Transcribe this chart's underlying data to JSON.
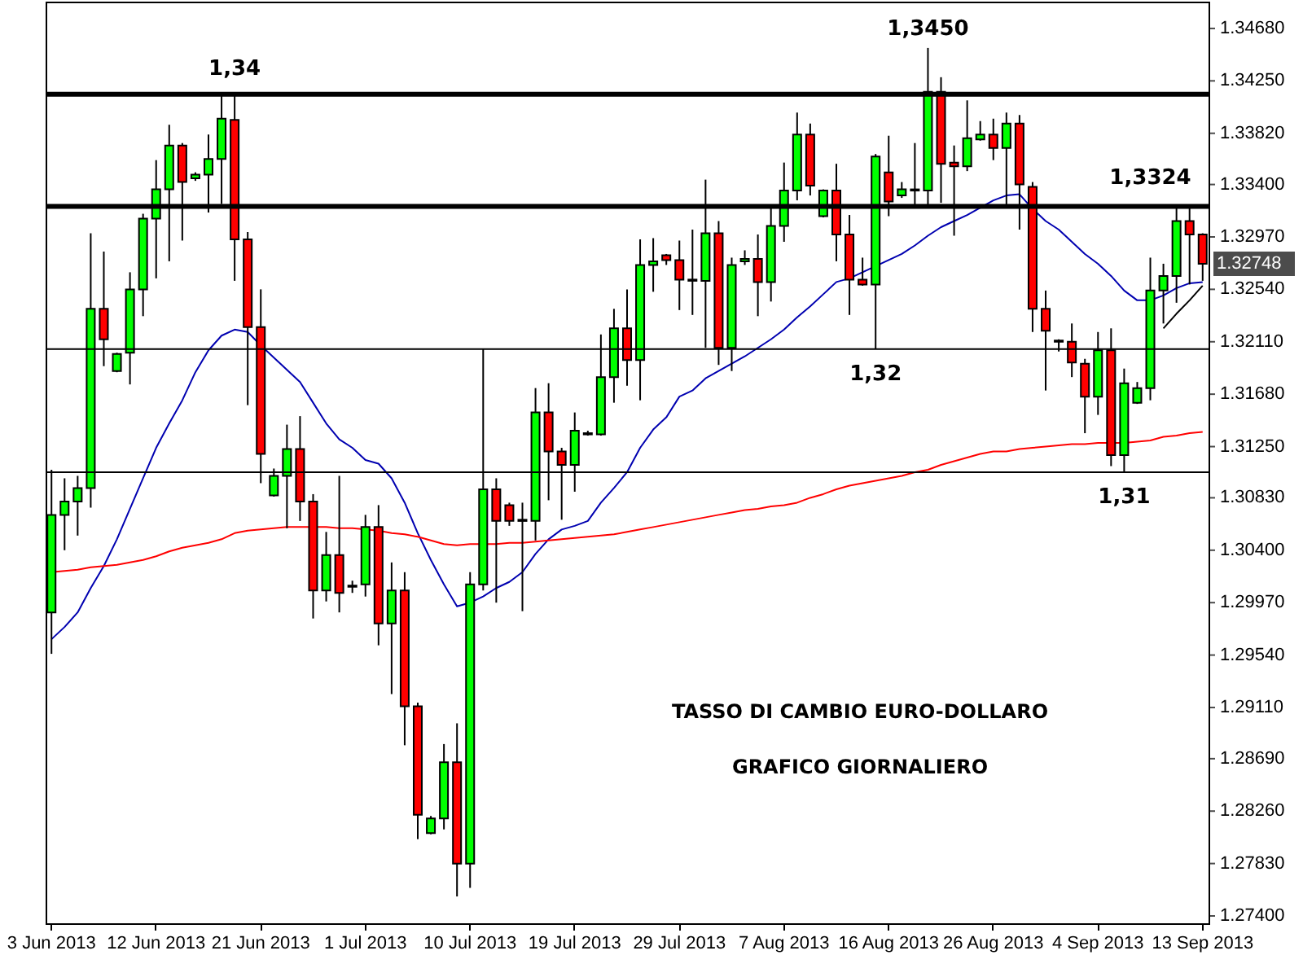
{
  "chart_data": {
    "type": "candlestick",
    "title": "TASSO DI CAMBIO EURO-DOLLARO",
    "subtitle": "GRAFICO GIORNALIERO",
    "categories": [
      "3 Jun 2013",
      null,
      null,
      null,
      null,
      null,
      null,
      null,
      "12 Jun 2013",
      null,
      null,
      null,
      null,
      null,
      null,
      null,
      "21 Jun 2013",
      null,
      null,
      null,
      null,
      null,
      null,
      null,
      "1 Jul 2013",
      null,
      null,
      null,
      null,
      null,
      null,
      null,
      "10 Jul 2013",
      null,
      null,
      null,
      null,
      null,
      null,
      null,
      "19 Jul 2013",
      null,
      null,
      null,
      null,
      null,
      null,
      null,
      "29 Jul 2013",
      null,
      null,
      null,
      null,
      null,
      null,
      null,
      "7 Aug 2013",
      null,
      null,
      null,
      null,
      null,
      null,
      null,
      "16 Aug 2013",
      null,
      null,
      null,
      null,
      null,
      null,
      null,
      "26 Aug 2013",
      null,
      null,
      null,
      null,
      null,
      null,
      null,
      "4 Sep 2013",
      null,
      null,
      null,
      null,
      null,
      null,
      null,
      "13 Sep 2013"
    ],
    "ohlc": [
      [
        1.2989,
        1.3106,
        1.2955,
        1.3069
      ],
      [
        1.3069,
        1.3099,
        1.304,
        1.308
      ],
      [
        1.308,
        1.3101,
        1.3052,
        1.3091
      ],
      [
        1.3091,
        1.33,
        1.3075,
        1.3238
      ],
      [
        1.3238,
        1.3285,
        1.3191,
        1.3213
      ],
      [
        1.3187,
        1.3202,
        1.3186,
        1.3201
      ],
      [
        1.3202,
        1.3268,
        1.3176,
        1.3254
      ],
      [
        1.3254,
        1.3316,
        1.3232,
        1.3312
      ],
      [
        1.3312,
        1.336,
        1.3263,
        1.3336
      ],
      [
        1.3336,
        1.3389,
        1.3277,
        1.3372
      ],
      [
        1.3372,
        1.3374,
        1.3294,
        1.3342
      ],
      [
        1.3345,
        1.335,
        1.3343,
        1.3348
      ],
      [
        1.3348,
        1.3381,
        1.3317,
        1.3361
      ],
      [
        1.3361,
        1.3414,
        1.3324,
        1.3394
      ],
      [
        1.3393,
        1.3414,
        1.3261,
        1.3295
      ],
      [
        1.3295,
        1.3301,
        1.3159,
        1.3223
      ],
      [
        1.3223,
        1.3254,
        1.3095,
        1.3119
      ],
      [
        1.3085,
        1.3107,
        1.3084,
        1.3101
      ],
      [
        1.3101,
        1.3143,
        1.3058,
        1.3123
      ],
      [
        1.3123,
        1.315,
        1.3064,
        1.308
      ],
      [
        1.308,
        1.3086,
        1.2984,
        1.3007
      ],
      [
        1.3007,
        1.3055,
        1.2998,
        1.3036
      ],
      [
        1.3036,
        1.3101,
        1.2989,
        1.3005
      ],
      [
        1.301,
        1.3015,
        1.3005,
        1.3011
      ],
      [
        1.3012,
        1.3069,
        1.3002,
        1.3059
      ],
      [
        1.3059,
        1.3077,
        1.2962,
        1.298
      ],
      [
        1.298,
        1.303,
        1.2922,
        1.3007
      ],
      [
        1.3007,
        1.3022,
        1.288,
        1.2912
      ],
      [
        1.2912,
        1.2915,
        1.2803,
        1.2823
      ],
      [
        1.2808,
        1.2822,
        1.2807,
        1.282
      ],
      [
        1.282,
        1.2881,
        1.2811,
        1.2866
      ],
      [
        1.2866,
        1.2898,
        1.2756,
        1.2783
      ],
      [
        1.2783,
        1.3022,
        1.2763,
        1.3012
      ],
      [
        1.3012,
        1.3205,
        1.3007,
        1.309
      ],
      [
        1.309,
        1.3099,
        1.2997,
        1.3064
      ],
      [
        1.3077,
        1.3079,
        1.306,
        1.3064
      ],
      [
        1.3064,
        1.3079,
        1.299,
        1.3065
      ],
      [
        1.3064,
        1.3173,
        1.3048,
        1.3153
      ],
      [
        1.3153,
        1.3177,
        1.3081,
        1.3121
      ],
      [
        1.3121,
        1.3124,
        1.3065,
        1.311
      ],
      [
        1.311,
        1.3153,
        1.3088,
        1.3138
      ],
      [
        1.3135,
        1.3138,
        1.3134,
        1.3136
      ],
      [
        1.3135,
        1.3217,
        1.3134,
        1.3182
      ],
      [
        1.3182,
        1.3238,
        1.3161,
        1.3222
      ],
      [
        1.3222,
        1.3254,
        1.3175,
        1.3196
      ],
      [
        1.3196,
        1.3295,
        1.3163,
        1.3274
      ],
      [
        1.3274,
        1.3296,
        1.3252,
        1.3277
      ],
      [
        1.3282,
        1.3283,
        1.3274,
        1.3278
      ],
      [
        1.3278,
        1.3294,
        1.3237,
        1.3262
      ],
      [
        1.3261,
        1.3303,
        1.3233,
        1.3262
      ],
      [
        1.3261,
        1.3344,
        1.3206,
        1.33
      ],
      [
        1.33,
        1.331,
        1.3192,
        1.3206
      ],
      [
        1.3206,
        1.328,
        1.3187,
        1.3274
      ],
      [
        1.3277,
        1.3286,
        1.3274,
        1.3279
      ],
      [
        1.3279,
        1.3299,
        1.3232,
        1.326
      ],
      [
        1.326,
        1.3322,
        1.3244,
        1.3306
      ],
      [
        1.3306,
        1.3358,
        1.3293,
        1.3335
      ],
      [
        1.3335,
        1.3399,
        1.3327,
        1.3381
      ],
      [
        1.3381,
        1.339,
        1.3331,
        1.3339
      ],
      [
        1.3314,
        1.3336,
        1.3313,
        1.3335
      ],
      [
        1.3335,
        1.3357,
        1.3277,
        1.3299
      ],
      [
        1.3299,
        1.3315,
        1.3233,
        1.3262
      ],
      [
        1.3262,
        1.328,
        1.3257,
        1.3258
      ],
      [
        1.3258,
        1.3365,
        1.3205,
        1.3363
      ],
      [
        1.335,
        1.338,
        1.3314,
        1.3326
      ],
      [
        1.3331,
        1.3342,
        1.3329,
        1.3336
      ],
      [
        1.3335,
        1.3374,
        1.3322,
        1.3336
      ],
      [
        1.3335,
        1.3452,
        1.3322,
        1.3416
      ],
      [
        1.3416,
        1.3428,
        1.3325,
        1.3357
      ],
      [
        1.3358,
        1.3372,
        1.3298,
        1.3355
      ],
      [
        1.3355,
        1.3409,
        1.3351,
        1.3378
      ],
      [
        1.3377,
        1.3392,
        1.3376,
        1.3381
      ],
      [
        1.3381,
        1.3394,
        1.336,
        1.337
      ],
      [
        1.337,
        1.3399,
        1.3322,
        1.339
      ],
      [
        1.339,
        1.3397,
        1.3303,
        1.334
      ],
      [
        1.3338,
        1.3342,
        1.3219,
        1.3238
      ],
      [
        1.3238,
        1.3253,
        1.3171,
        1.322
      ],
      [
        1.3211,
        1.3213,
        1.3203,
        1.3212
      ],
      [
        1.3211,
        1.3226,
        1.3182,
        1.3194
      ],
      [
        1.3193,
        1.3197,
        1.3136,
        1.3166
      ],
      [
        1.3166,
        1.3219,
        1.3151,
        1.3204
      ],
      [
        1.3204,
        1.3222,
        1.3109,
        1.3118
      ],
      [
        1.3118,
        1.3189,
        1.3104,
        1.3177
      ],
      [
        1.3161,
        1.3178,
        1.316,
        1.3173
      ],
      [
        1.3173,
        1.328,
        1.3163,
        1.3253
      ],
      [
        1.3253,
        1.3275,
        1.3226,
        1.3265
      ],
      [
        1.3265,
        1.3321,
        1.3243,
        1.331
      ],
      [
        1.331,
        1.3321,
        1.3258,
        1.3299
      ],
      [
        1.3299,
        1.33,
        1.3261,
        1.3275
      ]
    ],
    "colors": [
      "#00ff00",
      "#00ff00",
      "#00ff00",
      "#00ff00",
      "#ff0000",
      "#00ff00",
      "#00ff00",
      "#00ff00",
      "#00ff00",
      "#00ff00",
      "#ff0000",
      "#00ff00",
      "#00ff00",
      "#00ff00",
      "#ff0000",
      "#ff0000",
      "#ff0000",
      "#00ff00",
      "#00ff00",
      "#ff0000",
      "#ff0000",
      "#00ff00",
      "#ff0000",
      "#00ff00",
      "#00ff00",
      "#ff0000",
      "#00ff00",
      "#ff0000",
      "#ff0000",
      "#00ff00",
      "#00ff00",
      "#ff0000",
      "#00ff00",
      "#00ff00",
      "#ff0000",
      "#ff0000",
      "#00ff00",
      "#00ff00",
      "#ff0000",
      "#ff0000",
      "#00ff00",
      "#00ff00",
      "#00ff00",
      "#00ff00",
      "#ff0000",
      "#00ff00",
      "#00ff00",
      "#ff0000",
      "#ff0000",
      "#00ff00",
      "#00ff00",
      "#ff0000",
      "#00ff00",
      "#00ff00",
      "#ff0000",
      "#00ff00",
      "#00ff00",
      "#00ff00",
      "#ff0000",
      "#00ff00",
      "#ff0000",
      "#ff0000",
      "#ff0000",
      "#00ff00",
      "#ff0000",
      "#00ff00",
      "#00ff00",
      "#00ff00",
      "#ff0000",
      "#ff0000",
      "#00ff00",
      "#00ff00",
      "#ff0000",
      "#00ff00",
      "#ff0000",
      "#ff0000",
      "#ff0000",
      "#00ff00",
      "#ff0000",
      "#ff0000",
      "#00ff00",
      "#ff0000",
      "#00ff00",
      "#00ff00",
      "#00ff00",
      "#00ff00",
      "#00ff00",
      "#ff0000",
      "#ff0000"
    ],
    "series": [
      {
        "type": "line",
        "color": "#0000b0",
        "values": [
          1.2967,
          1.2977,
          1.2989,
          1.3009,
          1.3027,
          1.3049,
          1.3074,
          1.3099,
          1.3124,
          1.3144,
          1.3163,
          1.3186,
          1.3204,
          1.3216,
          1.3221,
          1.3219,
          1.3208,
          1.3198,
          1.3188,
          1.3178,
          1.3161,
          1.3144,
          1.3131,
          1.3124,
          1.3114,
          1.3111,
          1.3099,
          1.3079,
          1.3054,
          1.3032,
          1.3012,
          1.2994,
          1.2997,
          1.3002,
          1.3009,
          1.3014,
          1.3022,
          1.3037,
          1.3049,
          1.3057,
          1.306,
          1.3064,
          1.3079,
          1.3091,
          1.3104,
          1.3124,
          1.3139,
          1.3149,
          1.3166,
          1.3171,
          1.3181,
          1.3187,
          1.3193,
          1.3199,
          1.3206,
          1.3213,
          1.3221,
          1.3231,
          1.324,
          1.325,
          1.326,
          1.3263,
          1.3268,
          1.3273,
          1.3278,
          1.3283,
          1.329,
          1.3298,
          1.3305,
          1.331,
          1.3315,
          1.3321,
          1.3327,
          1.3331,
          1.3332,
          1.332,
          1.331,
          1.3303,
          1.3293,
          1.3283,
          1.3275,
          1.3265,
          1.3253,
          1.3245,
          1.3245,
          1.3249,
          1.3255,
          1.3259,
          1.326
        ]
      },
      {
        "type": "line",
        "color": "#ff0000",
        "values": [
          1.3022,
          1.3023,
          1.3024,
          1.3026,
          1.3027,
          1.3028,
          1.303,
          1.3032,
          1.3035,
          1.3039,
          1.3042,
          1.3044,
          1.3046,
          1.3049,
          1.3054,
          1.3056,
          1.3057,
          1.3058,
          1.3059,
          1.3059,
          1.3059,
          1.3059,
          1.3058,
          1.3058,
          1.3057,
          1.3056,
          1.3054,
          1.3053,
          1.3051,
          1.3048,
          1.3045,
          1.3044,
          1.3045,
          1.3045,
          1.3045,
          1.3046,
          1.3046,
          1.3047,
          1.3048,
          1.3049,
          1.305,
          1.3051,
          1.3052,
          1.3053,
          1.3055,
          1.3057,
          1.3059,
          1.3061,
          1.3063,
          1.3065,
          1.3067,
          1.3069,
          1.3071,
          1.3073,
          1.3074,
          1.3076,
          1.3077,
          1.3079,
          1.3083,
          1.3086,
          1.309,
          1.3093,
          1.3095,
          1.3097,
          1.3099,
          1.3101,
          1.3104,
          1.3106,
          1.311,
          1.3113,
          1.3116,
          1.3119,
          1.3121,
          1.3121,
          1.3123,
          1.3124,
          1.3125,
          1.3126,
          1.3127,
          1.3127,
          1.3128,
          1.3128,
          1.3128,
          1.3129,
          1.313,
          1.3133,
          1.3134,
          1.3136,
          1.3137
        ]
      },
      {
        "type": "line",
        "color": "#000000",
        "values": [
          null,
          null,
          null,
          null,
          null,
          null,
          null,
          null,
          null,
          null,
          null,
          null,
          null,
          null,
          null,
          null,
          null,
          null,
          null,
          null,
          null,
          null,
          null,
          null,
          null,
          null,
          null,
          null,
          null,
          null,
          null,
          null,
          null,
          null,
          null,
          null,
          null,
          null,
          null,
          null,
          null,
          null,
          null,
          null,
          null,
          null,
          null,
          null,
          null,
          null,
          null,
          null,
          null,
          null,
          null,
          null,
          null,
          null,
          null,
          null,
          null,
          null,
          null,
          null,
          null,
          null,
          null,
          null,
          null,
          null,
          null,
          null,
          null,
          null,
          null,
          null,
          null,
          null,
          null,
          null,
          null,
          null,
          null,
          null,
          null,
          1.3222,
          1.3234,
          1.3245,
          1.3257
        ]
      }
    ],
    "ylim": [
      1.2734,
      1.349
    ],
    "yticks": [
      {
        "value": 1.274,
        "label": "1.27400"
      },
      {
        "value": 1.2783,
        "label": "1.27830"
      },
      {
        "value": 1.2826,
        "label": "1.28260"
      },
      {
        "value": 1.2869,
        "label": "1.28690"
      },
      {
        "value": 1.2911,
        "label": "1.29110"
      },
      {
        "value": 1.2954,
        "label": "1.29540"
      },
      {
        "value": 1.2997,
        "label": "1.29970"
      },
      {
        "value": 1.304,
        "label": "1.30400"
      },
      {
        "value": 1.3083,
        "label": "1.30830"
      },
      {
        "value": 1.3125,
        "label": "1.31250"
      },
      {
        "value": 1.3168,
        "label": "1.31680"
      },
      {
        "value": 1.3211,
        "label": "1.32110"
      },
      {
        "value": 1.3254,
        "label": "1.32540"
      },
      {
        "value": 1.3297,
        "label": "1.32970"
      },
      {
        "value": 1.334,
        "label": "1.33400"
      },
      {
        "value": 1.3382,
        "label": "1.33820"
      },
      {
        "value": 1.3425,
        "label": "1.34250"
      },
      {
        "value": 1.3468,
        "label": "1.34680"
      }
    ],
    "ref_lines": [
      {
        "axis": "y",
        "value": 1.3414,
        "label": "1,34",
        "color": "#000000"
      },
      {
        "axis": "y",
        "value": 1.3322,
        "label": "1,3324",
        "color": "#000000"
      },
      {
        "axis": "y",
        "value": 1.3205,
        "label": "1,32",
        "color": "#000000"
      },
      {
        "axis": "y",
        "value": 1.3104,
        "label": "1,31",
        "color": "#000000"
      }
    ],
    "annotations": [
      {
        "text": "1,3450",
        "y": 1.3452
      },
      "1.32748"
    ]
  }
}
